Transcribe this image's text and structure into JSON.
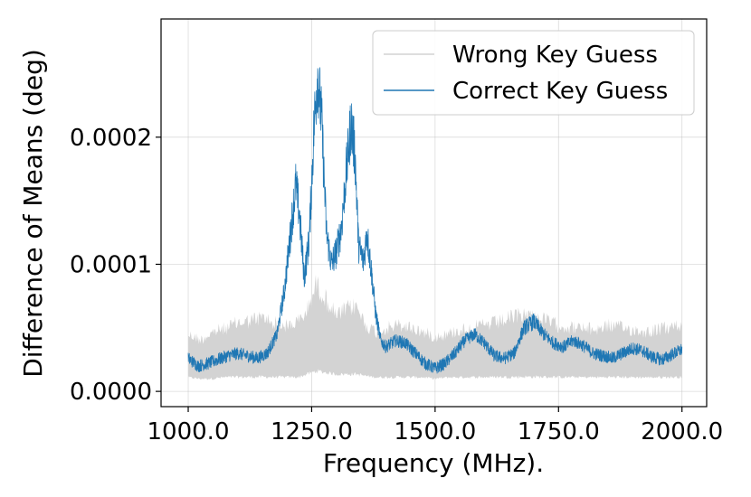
{
  "chart_data": {
    "type": "line",
    "title": "",
    "xlabel": "Frequency (MHz).",
    "ylabel": "Difference of Means (deg)",
    "xlim": [
      945,
      2050
    ],
    "ylim": [
      -1.2e-05,
      0.000293
    ],
    "x_ticks": [
      1000,
      1250,
      1500,
      1750,
      2000
    ],
    "x_tick_labels": [
      "1000.0",
      "1250.0",
      "1500.0",
      "1750.0",
      "2000.0"
    ],
    "y_ticks": [
      0.0,
      0.0001,
      0.0002
    ],
    "y_tick_labels": [
      "0.0000",
      "0.0001",
      "0.0002"
    ],
    "grid": true,
    "legend_position": "top-right",
    "series": [
      {
        "name": "Wrong Key Guess",
        "color": "#d3d3d3",
        "style": "band",
        "x": [
          1000,
          1025,
          1050,
          1075,
          1100,
          1125,
          1150,
          1175,
          1200,
          1225,
          1240,
          1260,
          1280,
          1300,
          1320,
          1340,
          1360,
          1380,
          1400,
          1425,
          1450,
          1475,
          1500,
          1525,
          1550,
          1575,
          1600,
          1625,
          1650,
          1675,
          1700,
          1725,
          1750,
          1775,
          1800,
          1825,
          1850,
          1875,
          1900,
          1925,
          1950,
          1975,
          2000
        ],
        "upper": [
          5e-05,
          4.5e-05,
          5.2e-05,
          5.5e-05,
          6e-05,
          6.2e-05,
          6.5e-05,
          6e-05,
          5.7e-05,
          6.2e-05,
          7e-05,
          9.5e-05,
          8e-05,
          6.6e-05,
          7.2e-05,
          7.5e-05,
          5.8e-05,
          5.2e-05,
          5.5e-05,
          5.8e-05,
          5.6e-05,
          5.2e-05,
          4.8e-05,
          5e-05,
          5.4e-05,
          5.6e-05,
          5.8e-05,
          6e-05,
          6.4e-05,
          6.8e-05,
          6.6e-05,
          6.2e-05,
          5.8e-05,
          5.6e-05,
          5.5e-05,
          5.4e-05,
          5.8e-05,
          5.6e-05,
          5.4e-05,
          5.2e-05,
          5.4e-05,
          5.6e-05,
          5.8e-05
        ],
        "lower": [
          1e-05,
          9e-06,
          9e-06,
          1e-05,
          1e-05,
          1e-05,
          1e-05,
          1e-05,
          1e-05,
          1e-05,
          1.2e-05,
          1.4e-05,
          1.3e-05,
          1.2e-05,
          1.2e-05,
          1.2e-05,
          1.1e-05,
          1e-05,
          1e-05,
          1e-05,
          1e-05,
          1e-05,
          9e-06,
          1e-05,
          1e-05,
          1e-05,
          1e-05,
          1e-05,
          1e-05,
          1e-05,
          1e-05,
          1e-05,
          1e-05,
          1e-05,
          1e-05,
          1e-05,
          1e-05,
          1e-05,
          1e-05,
          1e-05,
          1e-05,
          1e-05,
          1e-05
        ]
      },
      {
        "name": "Correct Key Guess",
        "color": "#1f77b4",
        "style": "line",
        "x": [
          1000,
          1020,
          1040,
          1060,
          1080,
          1100,
          1120,
          1140,
          1160,
          1180,
          1195,
          1210,
          1218,
          1225,
          1235,
          1245,
          1255,
          1262,
          1270,
          1280,
          1290,
          1300,
          1310,
          1320,
          1330,
          1338,
          1345,
          1355,
          1362,
          1370,
          1380,
          1390,
          1400,
          1420,
          1440,
          1460,
          1480,
          1500,
          1520,
          1540,
          1560,
          1580,
          1600,
          1620,
          1640,
          1660,
          1680,
          1700,
          1720,
          1740,
          1760,
          1780,
          1800,
          1820,
          1840,
          1860,
          1880,
          1900,
          1920,
          1940,
          1960,
          1980,
          2000
        ],
        "y": [
          2.6e-05,
          2e-05,
          2.2e-05,
          2.5e-05,
          2.8e-05,
          3e-05,
          2.8e-05,
          2.6e-05,
          3e-05,
          4.5e-05,
          8e-05,
          0.000135,
          0.000163,
          0.00014,
          9e-05,
          0.00012,
          0.00021,
          0.00025,
          0.000215,
          0.000125,
          0.0001,
          0.00011,
          0.000128,
          0.000172,
          0.000212,
          0.000185,
          0.000115,
          0.000102,
          0.000125,
          9.8e-05,
          6e-05,
          4e-05,
          3.5e-05,
          4e-05,
          3.8e-05,
          3e-05,
          2.2e-05,
          1.8e-05,
          2.2e-05,
          3e-05,
          4e-05,
          4.5e-05,
          3.8e-05,
          2.8e-05,
          2.6e-05,
          3e-05,
          5e-05,
          5.5e-05,
          4.5e-05,
          3.8e-05,
          3.5e-05,
          4e-05,
          3.6e-05,
          3e-05,
          2.8e-05,
          2.6e-05,
          3e-05,
          3.4e-05,
          3.2e-05,
          2.7e-05,
          2.5e-05,
          2.9e-05,
          3.3e-05
        ]
      }
    ]
  }
}
